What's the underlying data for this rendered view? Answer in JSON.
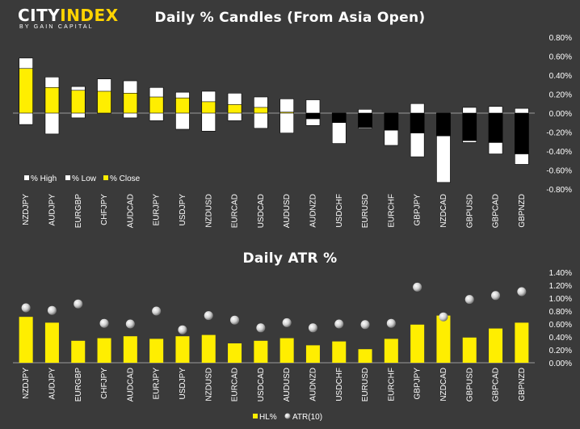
{
  "brand": {
    "part1": "CITY",
    "part2": "INDEX",
    "tagline": "BY GAIN CAPITAL"
  },
  "chart_data": [
    {
      "type": "bar",
      "title": "Daily % Candles (From Asia Open)",
      "categories": [
        "NZDJPY",
        "AUDJPY",
        "EURGBP",
        "CHFJPY",
        "AUDCAD",
        "EURJPY",
        "USDJPY",
        "NZDUSD",
        "EURCAD",
        "USDCAD",
        "AUDUSD",
        "AUDNZD",
        "USDCHF",
        "EURUSD",
        "EURCHF",
        "GBPJPY",
        "NZDCAD",
        "GBPUSD",
        "GBPCAD",
        "GBPNZD"
      ],
      "series": [
        {
          "name": "% High",
          "values": [
            0.58,
            0.38,
            0.28,
            0.36,
            0.34,
            0.27,
            0.22,
            0.23,
            0.21,
            0.17,
            0.15,
            0.14,
            0.0,
            0.04,
            0.0,
            0.1,
            0.0,
            0.06,
            0.07,
            0.05
          ]
        },
        {
          "name": "% Low",
          "values": [
            -0.12,
            -0.22,
            -0.05,
            0.0,
            -0.05,
            -0.08,
            -0.17,
            -0.19,
            -0.08,
            -0.16,
            -0.21,
            -0.13,
            -0.32,
            -0.16,
            -0.34,
            -0.46,
            -0.73,
            -0.31,
            -0.43,
            -0.54
          ]
        },
        {
          "name": "% Close",
          "values": [
            0.47,
            0.27,
            0.24,
            0.23,
            0.21,
            0.17,
            0.16,
            0.12,
            0.09,
            0.06,
            0.01,
            -0.06,
            -0.1,
            -0.15,
            -0.18,
            -0.21,
            -0.24,
            -0.29,
            -0.31,
            -0.43
          ]
        }
      ],
      "yticks": [
        "0.80%",
        "0.60%",
        "0.40%",
        "0.20%",
        "0.00%",
        "-0.20%",
        "-0.40%",
        "-0.60%",
        "-0.80%"
      ],
      "ylim": [
        -0.8,
        0.8
      ],
      "legend_position": "bottom-left",
      "colors": {
        "high_low": "#ffffff",
        "close_up": "#ffee00",
        "close_down": "#000000",
        "outline": "#000000"
      }
    },
    {
      "type": "bar",
      "title": "Daily ATR %",
      "categories": [
        "NZDJPY",
        "AUDJPY",
        "EURGBP",
        "CHFJPY",
        "AUDCAD",
        "EURJPY",
        "USDJPY",
        "NZDUSD",
        "EURCAD",
        "USDCAD",
        "AUDUSD",
        "AUDNZD",
        "USDCHF",
        "EURUSD",
        "EURCHF",
        "GBPJPY",
        "NZDCAD",
        "GBPUSD",
        "GBPCAD",
        "GBPNZD"
      ],
      "series": [
        {
          "name": "HL%",
          "values": [
            0.71,
            0.62,
            0.34,
            0.38,
            0.41,
            0.37,
            0.41,
            0.43,
            0.3,
            0.34,
            0.38,
            0.27,
            0.33,
            0.21,
            0.37,
            0.59,
            0.73,
            0.39,
            0.53,
            0.62
          ]
        },
        {
          "name": "ATR(10)",
          "values": [
            0.85,
            0.81,
            0.91,
            0.61,
            0.6,
            0.8,
            0.51,
            0.73,
            0.66,
            0.54,
            0.62,
            0.54,
            0.6,
            0.59,
            0.61,
            1.17,
            0.71,
            0.98,
            1.04,
            1.1
          ]
        }
      ],
      "yticks": [
        "1.40%",
        "1.20%",
        "1.00%",
        "0.80%",
        "0.60%",
        "0.40%",
        "0.20%",
        "0.00%"
      ],
      "ylim": [
        0,
        1.4
      ],
      "legend_position": "bottom-center",
      "colors": {
        "bar": "#ffee00",
        "marker": "#e8e8e8"
      }
    }
  ]
}
